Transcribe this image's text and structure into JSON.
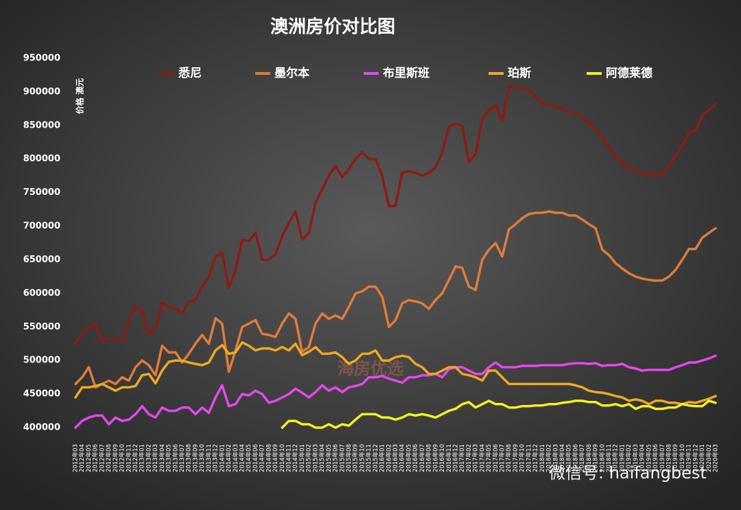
{
  "chart_data": {
    "type": "line",
    "title": "澳洲房价对比图",
    "y_label": "价格 澳元",
    "watermark": "海房优选",
    "annotation": "微信号: haifangbest",
    "grid": false,
    "legend": "top",
    "categories": [
      "2012年03",
      "2012年04",
      "2012年05",
      "2012年06",
      "2012年07",
      "2012年08",
      "2012年09",
      "2012年10",
      "2012年11",
      "2012年12",
      "2013年01",
      "2013年02",
      "2013年03",
      "2013年04",
      "2013年05",
      "2013年06",
      "2013年07",
      "2013年08",
      "2013年09",
      "2013年10",
      "2013年11",
      "2013年12",
      "2014年01",
      "2014年02",
      "2014年03",
      "2014年04",
      "2014年05",
      "2014年06",
      "2014年07",
      "2014年08",
      "2014年09",
      "2014年10",
      "2014年11",
      "2014年12",
      "2015年01",
      "2015年02",
      "2015年03",
      "2015年04",
      "2015年05",
      "2015年06",
      "2015年07",
      "2015年08",
      "2015年09",
      "2015年10",
      "2015年11",
      "2015年12",
      "2016年01",
      "2016年02",
      "2016年03",
      "2016年04",
      "2016年05",
      "2016年06",
      "2016年07",
      "2016年08",
      "2016年09",
      "2016年10",
      "2016年11",
      "2016年12",
      "2017年01",
      "2017年02",
      "2017年03",
      "2017年04",
      "2017年05",
      "2017年06",
      "2017年07",
      "2017年08",
      "2017年09",
      "2017年10",
      "2017年11",
      "2017年12",
      "2018年01",
      "2018年02",
      "2018年03",
      "2018年04",
      "2018年05",
      "2018年06",
      "2018年07",
      "2018年08",
      "2018年09",
      "2018年10",
      "2018年11",
      "2018年12",
      "2019年01",
      "2019年02",
      "2019年03",
      "2019年04",
      "2019年05",
      "2019年06",
      "2019年07",
      "2019年08",
      "2019年09",
      "2019年10",
      "2019年11",
      "2019年12",
      "2020年01",
      "2020年02",
      "2020年03"
    ],
    "ylim": [
      400000,
      950000
    ],
    "yticks": [
      400000,
      450000,
      500000,
      550000,
      600000,
      650000,
      700000,
      750000,
      800000,
      850000,
      900000,
      950000
    ],
    "series": [
      {
        "name": "悉尼",
        "color": "#8e1b10",
        "values": [
          525000,
          540000,
          550000,
          555000,
          528000,
          533000,
          530000,
          530000,
          560000,
          580000,
          575000,
          540000,
          548000,
          585000,
          580000,
          578000,
          570000,
          588000,
          590000,
          610000,
          625000,
          655000,
          660000,
          608000,
          635000,
          680000,
          678000,
          690000,
          650000,
          650000,
          658000,
          685000,
          705000,
          722000,
          680000,
          690000,
          735000,
          755000,
          775000,
          790000,
          773000,
          785000,
          800000,
          810000,
          800000,
          800000,
          775000,
          730000,
          730000,
          780000,
          782000,
          780000,
          775000,
          780000,
          787000,
          810000,
          848000,
          853000,
          850000,
          795000,
          808000,
          860000,
          873000,
          880000,
          857000,
          908000,
          908000,
          905000,
          903000,
          893000,
          883000,
          880000,
          878000,
          875000,
          870000,
          868000,
          862000,
          855000,
          845000,
          832000,
          818000,
          805000,
          795000,
          788000,
          782000,
          780000,
          777000,
          778000,
          777000,
          790000,
          805000,
          820000,
          840000,
          842000,
          865000,
          873000,
          882000
        ]
      },
      {
        "name": "墨尔本",
        "color": "#e07b39",
        "values": [
          465000,
          475000,
          490000,
          460000,
          465000,
          470000,
          465000,
          475000,
          470000,
          490000,
          500000,
          493000,
          478000,
          522000,
          512000,
          512000,
          497000,
          510000,
          525000,
          538000,
          525000,
          563000,
          555000,
          483000,
          515000,
          550000,
          555000,
          560000,
          540000,
          538000,
          535000,
          555000,
          570000,
          562000,
          513000,
          520000,
          555000,
          570000,
          562000,
          567000,
          562000,
          580000,
          600000,
          603000,
          610000,
          610000,
          595000,
          550000,
          560000,
          585000,
          590000,
          588000,
          585000,
          577000,
          590000,
          600000,
          620000,
          640000,
          638000,
          610000,
          605000,
          650000,
          665000,
          675000,
          655000,
          695000,
          703000,
          712000,
          718000,
          720000,
          720000,
          722000,
          720000,
          720000,
          716000,
          716000,
          710000,
          703000,
          697000,
          665000,
          657000,
          645000,
          637000,
          630000,
          625000,
          622000,
          620000,
          619000,
          619000,
          625000,
          635000,
          650000,
          666000,
          666000,
          683000,
          690000,
          697000
        ]
      },
      {
        "name": "布里斯班",
        "color": "#e646f0",
        "values": [
          400000,
          410000,
          415000,
          418000,
          418000,
          405000,
          415000,
          410000,
          412000,
          420000,
          432000,
          420000,
          415000,
          430000,
          425000,
          425000,
          430000,
          430000,
          420000,
          430000,
          422000,
          445000,
          463000,
          432000,
          435000,
          450000,
          448000,
          455000,
          450000,
          437000,
          440000,
          445000,
          450000,
          458000,
          452000,
          445000,
          453000,
          463000,
          455000,
          460000,
          453000,
          460000,
          462000,
          465000,
          475000,
          475000,
          477000,
          473000,
          470000,
          467000,
          475000,
          475000,
          478000,
          478000,
          480000,
          475000,
          487000,
          490000,
          490000,
          485000,
          480000,
          480000,
          490000,
          497000,
          490000,
          490000,
          490000,
          492000,
          492000,
          492000,
          493000,
          493000,
          493000,
          493000,
          495000,
          496000,
          496000,
          495000,
          496000,
          492000,
          493000,
          493000,
          495000,
          490000,
          488000,
          485000,
          486000,
          486000,
          486000,
          486000,
          490000,
          493000,
          497000,
          497000,
          500000,
          503000,
          507000
        ]
      },
      {
        "name": "珀斯",
        "color": "#f0a821",
        "values": [
          445000,
          460000,
          460000,
          462000,
          465000,
          460000,
          455000,
          460000,
          460000,
          462000,
          478000,
          480000,
          466000,
          485000,
          498000,
          500000,
          500000,
          497000,
          495000,
          493000,
          497000,
          515000,
          523000,
          510000,
          512000,
          527000,
          522000,
          515000,
          518000,
          518000,
          515000,
          520000,
          515000,
          525000,
          508000,
          513000,
          520000,
          510000,
          510000,
          512000,
          505000,
          495000,
          500000,
          510000,
          510000,
          515000,
          500000,
          500000,
          505000,
          507000,
          505000,
          495000,
          490000,
          480000,
          480000,
          485000,
          490000,
          490000,
          480000,
          478000,
          475000,
          470000,
          485000,
          485000,
          475000,
          465000,
          465000,
          465000,
          465000,
          465000,
          465000,
          465000,
          465000,
          465000,
          465000,
          463000,
          460000,
          455000,
          453000,
          452000,
          450000,
          447000,
          445000,
          440000,
          442000,
          440000,
          435000,
          440000,
          440000,
          437000,
          437000,
          435000,
          438000,
          437000,
          440000,
          443000,
          447000
        ]
      },
      {
        "name": "阿德莱德",
        "color": "#f2f21e",
        "values": [
          null,
          null,
          null,
          null,
          null,
          null,
          null,
          null,
          null,
          null,
          null,
          null,
          null,
          null,
          null,
          null,
          null,
          null,
          null,
          null,
          null,
          null,
          null,
          null,
          null,
          null,
          null,
          null,
          null,
          null,
          null,
          400000,
          410000,
          410000,
          405000,
          405000,
          400000,
          400000,
          405000,
          400000,
          405000,
          403000,
          412000,
          420000,
          420000,
          420000,
          415000,
          415000,
          412000,
          415000,
          420000,
          418000,
          420000,
          418000,
          415000,
          420000,
          425000,
          428000,
          435000,
          438000,
          430000,
          435000,
          440000,
          435000,
          435000,
          430000,
          430000,
          432000,
          432000,
          433000,
          433000,
          435000,
          435000,
          437000,
          438000,
          440000,
          440000,
          438000,
          438000,
          433000,
          433000,
          435000,
          432000,
          435000,
          428000,
          432000,
          432000,
          428000,
          428000,
          430000,
          430000,
          435000,
          433000,
          432000,
          432000,
          440000,
          437000
        ]
      }
    ]
  }
}
